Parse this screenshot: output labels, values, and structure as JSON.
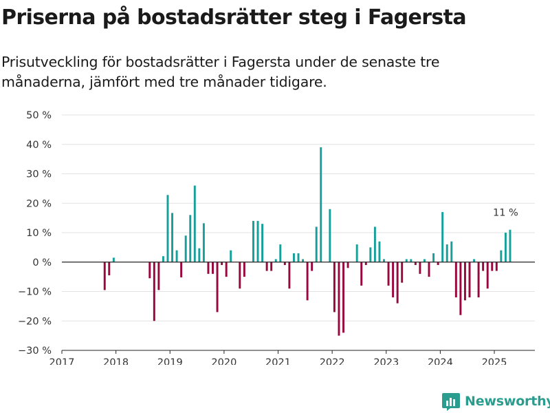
{
  "title": "Priserna på bostadsrätter steg i Fagersta",
  "subtitle": "Prisutveckling för bostadsrätter i Fagersta under de senaste tre månaderna, jämfört med tre månader tidigare.",
  "brand": {
    "name": "Newsworthy",
    "icon": "bar-chart-logo-icon",
    "color": "#2a9d8f"
  },
  "colors": {
    "positive": "#17a09a",
    "negative": "#99073f",
    "grid": "#e2e2e2",
    "axis": "#222222"
  },
  "chart_data": {
    "type": "bar",
    "x_unit": "month",
    "x_ticks": [
      "2017",
      "2018",
      "2019",
      "2020",
      "2021",
      "2022",
      "2023",
      "2024",
      "2025"
    ],
    "y_ticks": [
      "50 %",
      "40 %",
      "30 %",
      "20 %",
      "10 %",
      "0 %",
      "−10 %",
      "−20 %",
      "−30 %"
    ],
    "ylim": [
      -30,
      50
    ],
    "xlim": [
      "2017-01",
      "2025-09"
    ],
    "grid": true,
    "legend": "none",
    "annotation": {
      "text": "11 %",
      "at": "2025-03"
    },
    "series": [
      {
        "values": [
          {
            "x": "2017-10",
            "y": -9.5
          },
          {
            "x": "2017-11",
            "y": -4.5
          },
          {
            "x": "2017-12",
            "y": 1.5
          },
          {
            "x": "2018-08",
            "y": -5.5
          },
          {
            "x": "2018-09",
            "y": -20
          },
          {
            "x": "2018-10",
            "y": -9.5
          },
          {
            "x": "2018-11",
            "y": 2
          },
          {
            "x": "2018-12",
            "y": 22.8
          },
          {
            "x": "2019-01",
            "y": 16.7
          },
          {
            "x": "2019-02",
            "y": 4
          },
          {
            "x": "2019-03",
            "y": -5.2
          },
          {
            "x": "2019-04",
            "y": 9
          },
          {
            "x": "2019-05",
            "y": 16
          },
          {
            "x": "2019-06",
            "y": 26
          },
          {
            "x": "2019-07",
            "y": 4.7
          },
          {
            "x": "2019-08",
            "y": 13.2
          },
          {
            "x": "2019-09",
            "y": -4
          },
          {
            "x": "2019-10",
            "y": -4
          },
          {
            "x": "2019-11",
            "y": -17
          },
          {
            "x": "2019-12",
            "y": -1
          },
          {
            "x": "2020-01",
            "y": -5
          },
          {
            "x": "2020-02",
            "y": 4
          },
          {
            "x": "2020-04",
            "y": -9
          },
          {
            "x": "2020-05",
            "y": -5
          },
          {
            "x": "2020-07",
            "y": 14
          },
          {
            "x": "2020-08",
            "y": 14
          },
          {
            "x": "2020-09",
            "y": 13
          },
          {
            "x": "2020-10",
            "y": -3
          },
          {
            "x": "2020-11",
            "y": -3
          },
          {
            "x": "2020-12",
            "y": 1
          },
          {
            "x": "2021-01",
            "y": 6
          },
          {
            "x": "2021-02",
            "y": -1
          },
          {
            "x": "2021-03",
            "y": -9
          },
          {
            "x": "2021-04",
            "y": 3
          },
          {
            "x": "2021-05",
            "y": 3
          },
          {
            "x": "2021-06",
            "y": 1
          },
          {
            "x": "2021-07",
            "y": -13
          },
          {
            "x": "2021-08",
            "y": -3
          },
          {
            "x": "2021-09",
            "y": 12
          },
          {
            "x": "2021-10",
            "y": 39
          },
          {
            "x": "2021-12",
            "y": 18
          },
          {
            "x": "2022-01",
            "y": -17
          },
          {
            "x": "2022-02",
            "y": -25
          },
          {
            "x": "2022-03",
            "y": -24
          },
          {
            "x": "2022-04",
            "y": -2
          },
          {
            "x": "2022-06",
            "y": 6
          },
          {
            "x": "2022-07",
            "y": -8
          },
          {
            "x": "2022-08",
            "y": -1
          },
          {
            "x": "2022-09",
            "y": 5
          },
          {
            "x": "2022-10",
            "y": 12
          },
          {
            "x": "2022-11",
            "y": 7
          },
          {
            "x": "2022-12",
            "y": 1
          },
          {
            "x": "2023-01",
            "y": -8
          },
          {
            "x": "2023-02",
            "y": -12
          },
          {
            "x": "2023-03",
            "y": -14
          },
          {
            "x": "2023-04",
            "y": -7
          },
          {
            "x": "2023-05",
            "y": 1
          },
          {
            "x": "2023-06",
            "y": 1
          },
          {
            "x": "2023-07",
            "y": -1
          },
          {
            "x": "2023-08",
            "y": -4
          },
          {
            "x": "2023-09",
            "y": 1
          },
          {
            "x": "2023-10",
            "y": -5
          },
          {
            "x": "2023-11",
            "y": 3
          },
          {
            "x": "2023-12",
            "y": -1
          },
          {
            "x": "2024-01",
            "y": 17
          },
          {
            "x": "2024-02",
            "y": 6
          },
          {
            "x": "2024-03",
            "y": 7
          },
          {
            "x": "2024-04",
            "y": -12
          },
          {
            "x": "2024-05",
            "y": -18
          },
          {
            "x": "2024-06",
            "y": -13
          },
          {
            "x": "2024-07",
            "y": -12
          },
          {
            "x": "2024-08",
            "y": 1
          },
          {
            "x": "2024-09",
            "y": -12
          },
          {
            "x": "2024-10",
            "y": -3
          },
          {
            "x": "2024-11",
            "y": -9
          },
          {
            "x": "2024-12",
            "y": -3
          },
          {
            "x": "2025-01",
            "y": -3
          },
          {
            "x": "2025-02",
            "y": 4
          },
          {
            "x": "2025-03",
            "y": 10
          },
          {
            "x": "2025-04",
            "y": 11
          }
        ]
      }
    ]
  }
}
